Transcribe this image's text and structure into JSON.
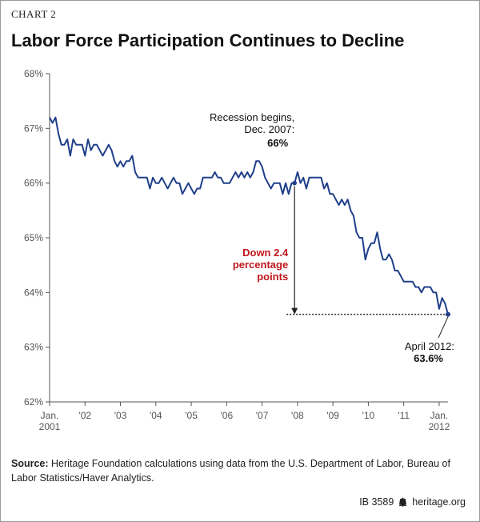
{
  "header": {
    "label": "CHART 2",
    "title": "Labor Force Participation Continues to Decline"
  },
  "colors": {
    "line": "#1f3f8a",
    "annotation_red": "#c0161c",
    "axis": "#555555"
  },
  "chart_data": {
    "type": "line",
    "title": "Labor Force Participation Continues to Decline",
    "xlabel": "",
    "ylabel": "",
    "ylim": [
      62,
      68
    ],
    "yticks": [
      62,
      63,
      64,
      65,
      66,
      67,
      68
    ],
    "ytick_labels": [
      "62%",
      "63%",
      "64%",
      "65%",
      "66%",
      "67%",
      "68%"
    ],
    "xlim": [
      2001.0,
      2012.25
    ],
    "xticks": [
      {
        "x": 2001,
        "lines": [
          "Jan.",
          "2001"
        ]
      },
      {
        "x": 2002,
        "lines": [
          "'02"
        ]
      },
      {
        "x": 2003,
        "lines": [
          "'03"
        ]
      },
      {
        "x": 2004,
        "lines": [
          "'04"
        ]
      },
      {
        "x": 2005,
        "lines": [
          "'05"
        ]
      },
      {
        "x": 2006,
        "lines": [
          "'06"
        ]
      },
      {
        "x": 2007,
        "lines": [
          "'07"
        ]
      },
      {
        "x": 2008,
        "lines": [
          "'08"
        ]
      },
      {
        "x": 2009,
        "lines": [
          "'09"
        ]
      },
      {
        "x": 2010,
        "lines": [
          "'10"
        ]
      },
      {
        "x": 2011,
        "lines": [
          "'11"
        ]
      },
      {
        "x": 2012,
        "lines": [
          "Jan.",
          "2012"
        ]
      }
    ],
    "grid": false,
    "series": [
      {
        "values": [
          67.2,
          67.1,
          67.2,
          66.9,
          66.7,
          66.7,
          66.8,
          66.5,
          66.8,
          66.7,
          66.7,
          66.7,
          66.5,
          66.8,
          66.6,
          66.7,
          66.7,
          66.6,
          66.5,
          66.6,
          66.7,
          66.6,
          66.4,
          66.3,
          66.4,
          66.3,
          66.4,
          66.4,
          66.5,
          66.2,
          66.1,
          66.1,
          66.1,
          66.1,
          65.9,
          66.1,
          66.0,
          66.0,
          66.1,
          66.0,
          65.9,
          66.0,
          66.1,
          66.0,
          66.0,
          65.8,
          65.9,
          66.0,
          65.9,
          65.8,
          65.9,
          65.9,
          66.1,
          66.1,
          66.1,
          66.1,
          66.2,
          66.1,
          66.1,
          66.0,
          66.0,
          66.0,
          66.1,
          66.2,
          66.1,
          66.2,
          66.1,
          66.2,
          66.1,
          66.2,
          66.4,
          66.4,
          66.3,
          66.1,
          66.0,
          65.9,
          66.0,
          66.0,
          66.0,
          65.8,
          66.0,
          65.8,
          66.0,
          66.0,
          66.2,
          66.0,
          66.1,
          65.9,
          66.1,
          66.1,
          66.1,
          66.1,
          66.1,
          65.9,
          66.0,
          65.8,
          65.8,
          65.7,
          65.6,
          65.7,
          65.6,
          65.7,
          65.5,
          65.4,
          65.1,
          65.0,
          65.0,
          64.6,
          64.8,
          64.9,
          64.9,
          65.1,
          64.8,
          64.6,
          64.6,
          64.7,
          64.6,
          64.4,
          64.4,
          64.3,
          64.2,
          64.2,
          64.2,
          64.2,
          64.1,
          64.1,
          64.0,
          64.1,
          64.1,
          64.1,
          64.0,
          64.0,
          63.7,
          63.9,
          63.8,
          63.6
        ],
        "start": [
          2001,
          1
        ]
      }
    ],
    "annotations": {
      "recession": {
        "lines": [
          "Recession begins,",
          "Dec. 2007:"
        ],
        "value_label": "66%",
        "x": 2007.917,
        "y": 66.0
      },
      "down": {
        "lines": [
          "Down 2.4",
          "percentage",
          "points"
        ]
      },
      "end": {
        "lines": [
          "April 2012:"
        ],
        "value_label": "63.6%",
        "x": 2012.25,
        "y": 63.6
      }
    }
  },
  "source": {
    "label": "Source:",
    "text": "Heritage Foundation calculations using data from the U.S. Department of Labor, Bureau of Labor Statistics/Haver Analytics."
  },
  "footer": {
    "id": "IB 3589",
    "site": "heritage.org"
  }
}
